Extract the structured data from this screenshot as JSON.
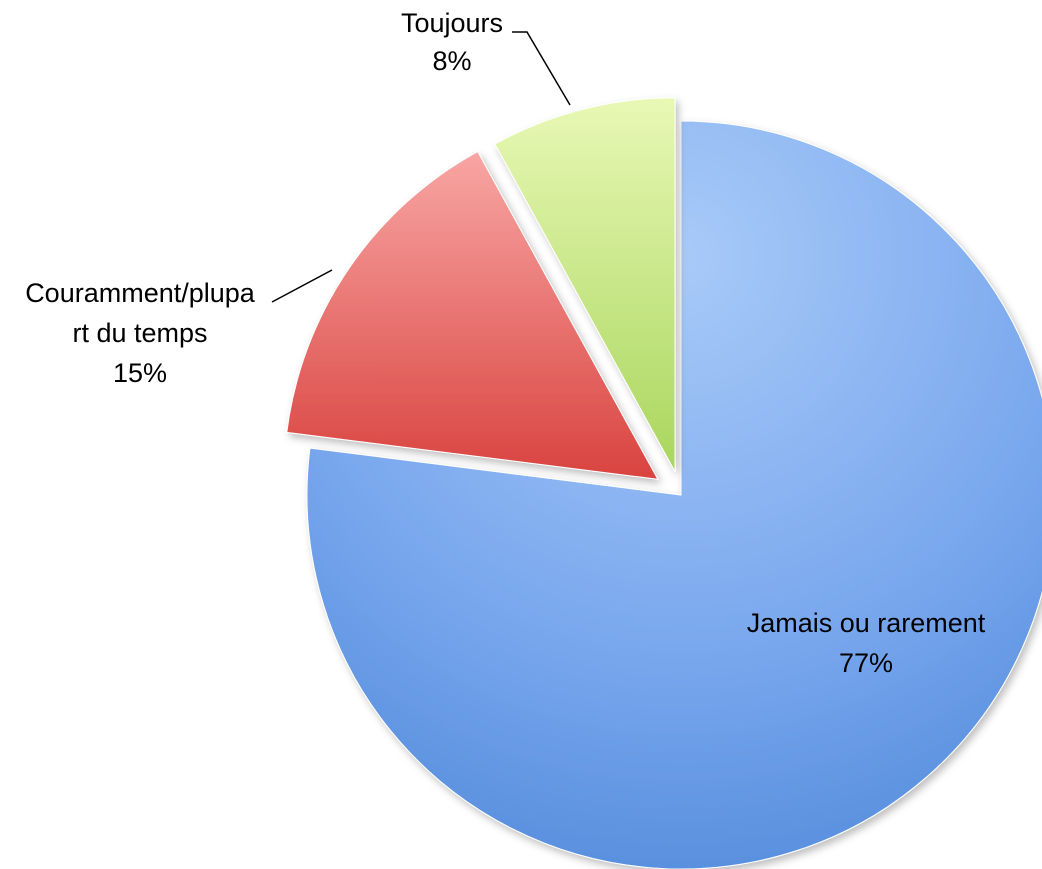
{
  "chart_data": {
    "type": "pie",
    "categories": [
      "Jamais ou rarement",
      "Couramment/plupart du temps",
      "Toujours"
    ],
    "values": [
      77,
      15,
      8
    ],
    "value_labels": [
      "77%",
      "15%",
      "8%"
    ],
    "label_lines": [
      [
        "Jamais ou rarement",
        "77%"
      ],
      [
        "Couramment/plupa",
        "rt du temps",
        "15%"
      ],
      [
        "Toujours",
        "8%"
      ]
    ],
    "colors": [
      "#6fa0e8",
      "#e45a56",
      "#c9e987"
    ],
    "exploded": true,
    "legend": "none",
    "title": ""
  }
}
